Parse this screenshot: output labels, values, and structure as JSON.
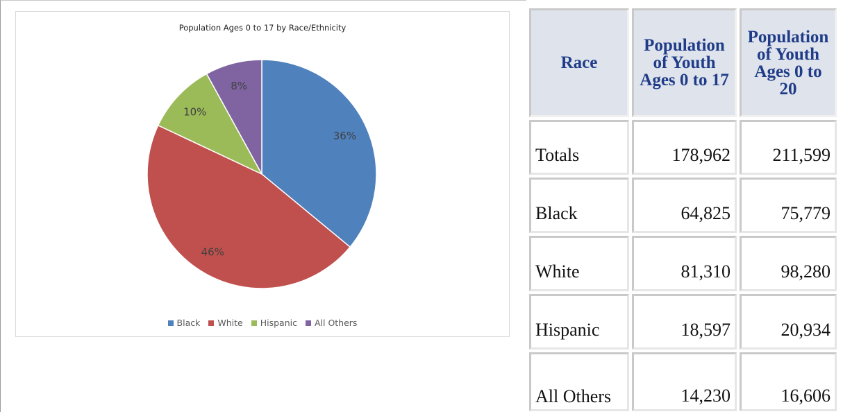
{
  "chart_data": {
    "type": "pie",
    "title": "Population Ages 0 to 17 by Race/Ethnicity",
    "categories": [
      "Black",
      "White",
      "Hispanic",
      "All Others"
    ],
    "values": [
      36,
      46,
      10,
      8
    ],
    "labels": [
      "36%",
      "46%",
      "10%",
      "8%"
    ],
    "colors": [
      "#4f81bd",
      "#c0504d",
      "#9bbb59",
      "#8064a2"
    ],
    "legend_position": "bottom"
  },
  "table": {
    "headers": [
      "Race",
      "Population of Youth Ages 0 to 17",
      "Population of Youth Ages 0 to 20"
    ],
    "rows": [
      {
        "race": "Totals",
        "ages_0_17": "178,962",
        "ages_0_20": "211,599"
      },
      {
        "race": "Black",
        "ages_0_17": "64,825",
        "ages_0_20": "75,779"
      },
      {
        "race": "White",
        "ages_0_17": "81,310",
        "ages_0_20": "98,280"
      },
      {
        "race": "Hispanic",
        "ages_0_17": "18,597",
        "ages_0_20": "20,934"
      },
      {
        "race": "All Others",
        "ages_0_17": "14,230",
        "ages_0_20": "16,606"
      }
    ]
  }
}
